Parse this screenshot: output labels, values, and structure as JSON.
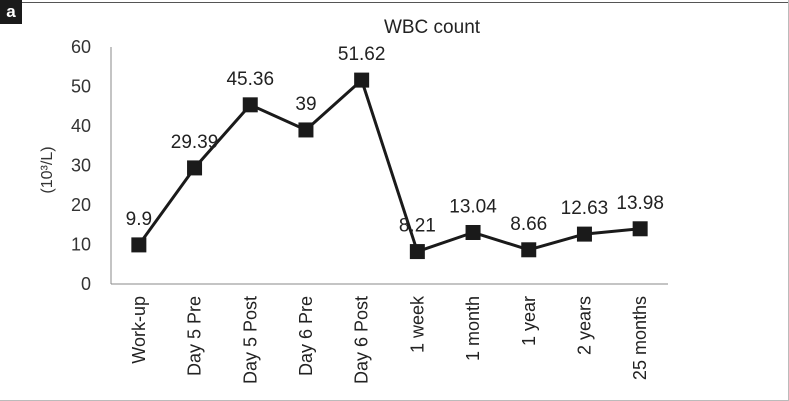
{
  "panel": {
    "letter": "a"
  },
  "chart_data": {
    "type": "line",
    "title": "WBC count",
    "xlabel": "",
    "ylabel": "(10³/L)",
    "categories": [
      "Work-up",
      "Day 5 Pre",
      "Day 5 Post",
      "Day 6 Pre",
      "Day 6 Post",
      "1 week",
      "1 month",
      "1 year",
      "2 years",
      "25 months"
    ],
    "series": [
      {
        "values": [
          9.9,
          29.39,
          45.36,
          39,
          51.62,
          8.21,
          13.04,
          8.66,
          12.63,
          13.98
        ],
        "labels": [
          "9.9",
          "29.39",
          "45.36",
          "39",
          "51.62",
          "8.21",
          "13.04",
          "8.66",
          "12.63",
          "13.98"
        ],
        "color": "#1a1a1a",
        "marker": "square"
      }
    ],
    "ylim": [
      0,
      60
    ],
    "yticks": [
      "0",
      "10",
      "20",
      "30",
      "40",
      "50",
      "60"
    ],
    "grid": false,
    "legend": "none"
  }
}
